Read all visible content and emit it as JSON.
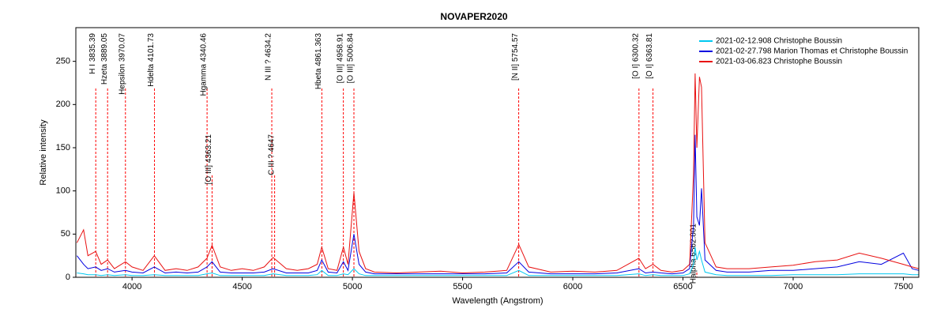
{
  "chart_data": {
    "type": "line",
    "title": "NOVAPER2020",
    "x_label": "Wavelength (Angstrom)",
    "y_label": "Relative intensity",
    "xlim": [
      3745,
      7570
    ],
    "ylim": [
      0,
      289
    ],
    "xticks": [
      4000,
      4500,
      5000,
      5500,
      6000,
      6500,
      7000,
      7500
    ],
    "yticks": [
      0,
      50,
      100,
      150,
      200,
      250
    ],
    "legend": "upper right",
    "line_color": "#ff0000",
    "x": [
      3750,
      3780,
      3800,
      3835,
      3860,
      3889,
      3920,
      3970,
      4000,
      4050,
      4101,
      4150,
      4200,
      4250,
      4300,
      4340,
      4363,
      4400,
      4450,
      4500,
      4550,
      4600,
      4640,
      4700,
      4750,
      4800,
      4840,
      4861,
      4890,
      4930,
      4959,
      4980,
      5007,
      5030,
      5060,
      5100,
      5200,
      5300,
      5400,
      5500,
      5600,
      5700,
      5755,
      5800,
      5900,
      6000,
      6100,
      6200,
      6300,
      6330,
      6364,
      6400,
      6450,
      6500,
      6530,
      6548,
      6555,
      6563,
      6575,
      6584,
      6600,
      6650,
      6700,
      6800,
      6900,
      7000,
      7100,
      7200,
      7300,
      7400,
      7500,
      7540,
      7570
    ],
    "series": [
      {
        "name": "2021-02-12.908  Christophe Boussin",
        "color": "#00c8f0",
        "values": [
          5,
          4,
          3,
          3,
          2,
          3,
          2,
          3,
          2,
          2,
          3,
          2,
          2,
          2,
          2,
          4,
          5,
          2,
          2,
          2,
          2,
          2,
          4,
          2,
          2,
          2,
          3,
          8,
          2,
          2,
          4,
          3,
          10,
          4,
          2,
          2,
          2,
          2,
          2,
          2,
          2,
          2,
          8,
          2,
          2,
          2,
          2,
          2,
          4,
          2,
          3,
          2,
          2,
          2,
          4,
          15,
          35,
          20,
          30,
          20,
          6,
          3,
          2,
          2,
          2,
          3,
          3,
          3,
          4,
          4,
          4,
          3,
          3
        ]
      },
      {
        "name": "2021-02-27.798  Marion Thomas et Christophe Boussin",
        "color": "#0000e0",
        "values": [
          25,
          15,
          10,
          12,
          8,
          10,
          6,
          8,
          6,
          5,
          12,
          5,
          6,
          5,
          6,
          12,
          18,
          6,
          5,
          5,
          5,
          6,
          10,
          5,
          5,
          5,
          8,
          20,
          6,
          5,
          18,
          8,
          50,
          15,
          6,
          4,
          4,
          4,
          4,
          4,
          4,
          5,
          18,
          6,
          4,
          4,
          4,
          5,
          10,
          5,
          6,
          5,
          4,
          5,
          10,
          60,
          165,
          70,
          60,
          103,
          20,
          8,
          6,
          6,
          8,
          8,
          10,
          12,
          18,
          15,
          28,
          10,
          8
        ]
      },
      {
        "name": "2021-03-06.823  Christophe Boussin",
        "color": "#e81010",
        "values": [
          40,
          55,
          25,
          30,
          15,
          20,
          10,
          18,
          12,
          8,
          25,
          8,
          10,
          8,
          12,
          22,
          37,
          12,
          8,
          10,
          8,
          12,
          23,
          10,
          8,
          10,
          15,
          35,
          10,
          8,
          35,
          15,
          98,
          30,
          10,
          6,
          5,
          6,
          7,
          5,
          6,
          8,
          38,
          12,
          6,
          7,
          6,
          8,
          22,
          10,
          15,
          8,
          6,
          8,
          15,
          120,
          236,
          150,
          232,
          220,
          40,
          12,
          10,
          10,
          12,
          14,
          18,
          20,
          28,
          22,
          15,
          12,
          10
        ]
      }
    ],
    "lines": [
      {
        "label": "H I 3835.39",
        "x": 3835.39
      },
      {
        "label": "Hzeta 3889.05",
        "x": 3889.05
      },
      {
        "label": "Hepsilon 3970.07",
        "x": 3970.07
      },
      {
        "label": "Hdelta 4101.73",
        "x": 4101.73
      },
      {
        "label": "Hgamma 4340.46",
        "x": 4340.46
      },
      {
        "label": "N III ? 4634.2",
        "x": 4634.2
      },
      {
        "label": "Hbeta 4861.363",
        "x": 4861.363
      },
      {
        "label": "[O III] 4958.91",
        "x": 4958.91
      },
      {
        "label": "[O III] 5006.84",
        "x": 5006.84
      },
      {
        "label": "[N II] 5754.57",
        "x": 5754.57
      },
      {
        "label": "[O I] 6300.32",
        "x": 6300.32
      },
      {
        "label": "[O I] 6363.81",
        "x": 6363.81
      }
    ],
    "secondary_lines": [
      {
        "label": "[O III] 4363.21",
        "x": 4363.21
      },
      {
        "label": "C III ? 4647",
        "x": 4647
      },
      {
        "label": "Halpha 6562.801",
        "x": 6562.801
      }
    ]
  }
}
